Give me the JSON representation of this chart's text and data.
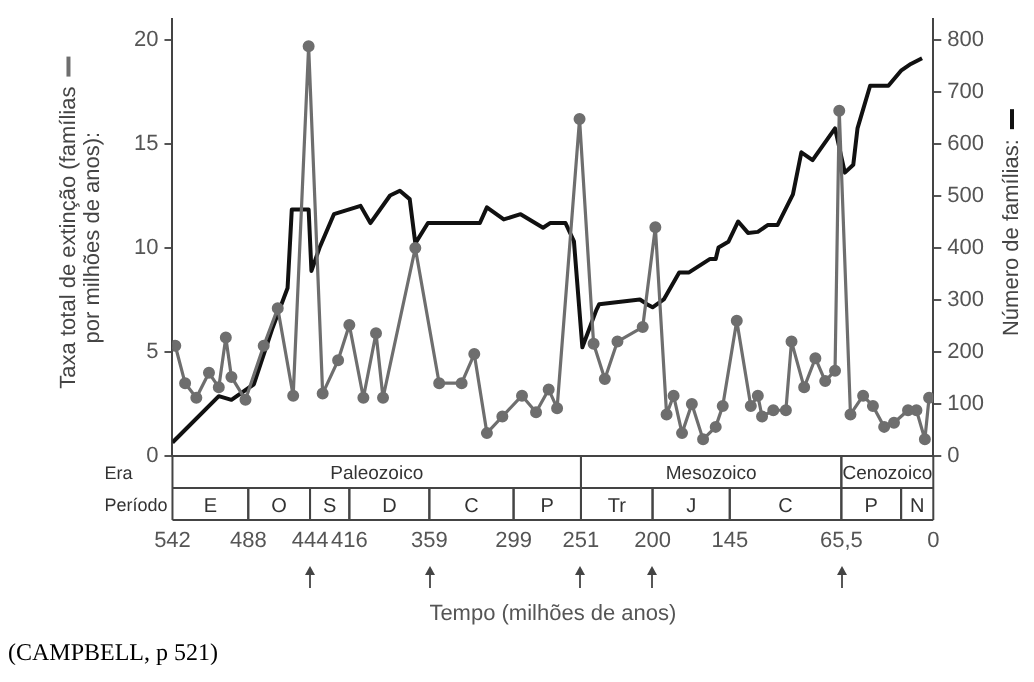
{
  "chart_data": {
    "type": "line",
    "xlabel": "Tempo (milhões de anos)",
    "ylabel": "Taxa total de extinção (famílias por milhões de anos):",
    "y2label": "Número de famílias:",
    "xlim": [
      542,
      0
    ],
    "xticks": [
      542,
      488,
      444,
      416,
      359,
      299,
      251,
      200,
      145,
      {
        "value": 65.5,
        "label": "65,5"
      },
      0
    ],
    "ylim": [
      0,
      21
    ],
    "yticks": [
      0,
      5,
      10,
      15,
      20
    ],
    "y2lim": [
      0,
      840
    ],
    "y2ticks": [
      0,
      100,
      200,
      300,
      400,
      500,
      600,
      700,
      800
    ],
    "grid": false,
    "legend": false,
    "series": [
      {
        "color": "#6e6e6e",
        "marker": "circle",
        "x": [
          540,
          533,
          525,
          516,
          509,
          504,
          500,
          490,
          477,
          467,
          456,
          445,
          435,
          424,
          416,
          406,
          397,
          392,
          369,
          352,
          336,
          327,
          318,
          307,
          293,
          283,
          274,
          268,
          252,
          242,
          234,
          225,
          207,
          198,
          190,
          185,
          179,
          172,
          164,
          155,
          150,
          140,
          130,
          125,
          122,
          114,
          105,
          101,
          92,
          84,
          77,
          70,
          67,
          59,
          50,
          43,
          35,
          28,
          18,
          12,
          6,
          3
        ],
        "values": [
          5.3,
          3.5,
          2.8,
          4.0,
          3.3,
          5.7,
          3.8,
          2.7,
          5.3,
          7.1,
          2.9,
          19.7,
          3.0,
          4.6,
          6.3,
          2.8,
          5.9,
          2.8,
          10.0,
          3.5,
          3.5,
          4.9,
          1.1,
          1.9,
          2.9,
          2.1,
          3.2,
          2.3,
          16.2,
          5.4,
          3.7,
          5.5,
          6.2,
          11.0,
          2.0,
          2.9,
          1.1,
          2.5,
          0.8,
          1.4,
          2.4,
          6.5,
          2.4,
          2.9,
          1.9,
          2.2,
          2.2,
          5.5,
          3.3,
          4.7,
          3.6,
          4.1,
          16.6,
          2.0,
          2.9,
          2.4,
          1.4,
          1.6,
          2.2,
          2.2,
          0.8,
          2.8
        ]
      },
      {
        "color": "#111111",
        "marker": "none",
        "axis": "y2",
        "x": [
          542,
          509,
          500,
          484,
          471,
          460,
          457,
          445,
          443,
          437,
          427,
          408,
          401,
          387,
          380,
          373,
          369,
          360,
          323,
          318,
          306,
          294,
          278,
          273,
          262,
          256,
          250,
          240,
          238,
          209,
          204,
          200,
          192,
          181,
          174,
          159,
          155,
          153,
          146,
          139,
          132,
          125,
          118,
          111,
          100,
          94,
          86,
          70,
          63,
          57,
          54,
          45,
          32,
          23,
          16,
          8
        ],
        "values": [
          26,
          115,
          108,
          138,
          244,
          323,
          474,
          474,
          356,
          402,
          465,
          481,
          448,
          501,
          510,
          494,
          409,
          448,
          448,
          478,
          455,
          465,
          439,
          448,
          448,
          413,
          209,
          281,
          292,
          301,
          292,
          286,
          301,
          353,
          353,
          379,
          379,
          401,
          412,
          451,
          429,
          431,
          444,
          444,
          503,
          584,
          569,
          630,
          545,
          560,
          630,
          712,
          712,
          741,
          754,
          765
        ]
      }
    ],
    "annotations": [
      "Era",
      "Período",
      "Paleozoico",
      "Mesozoico",
      "Cenozoico",
      "E",
      "O",
      "S",
      "D",
      "C",
      "P",
      "Tr",
      "J",
      "C",
      "P",
      "N",
      "(CAMPBELL, p 521)"
    ]
  }
}
